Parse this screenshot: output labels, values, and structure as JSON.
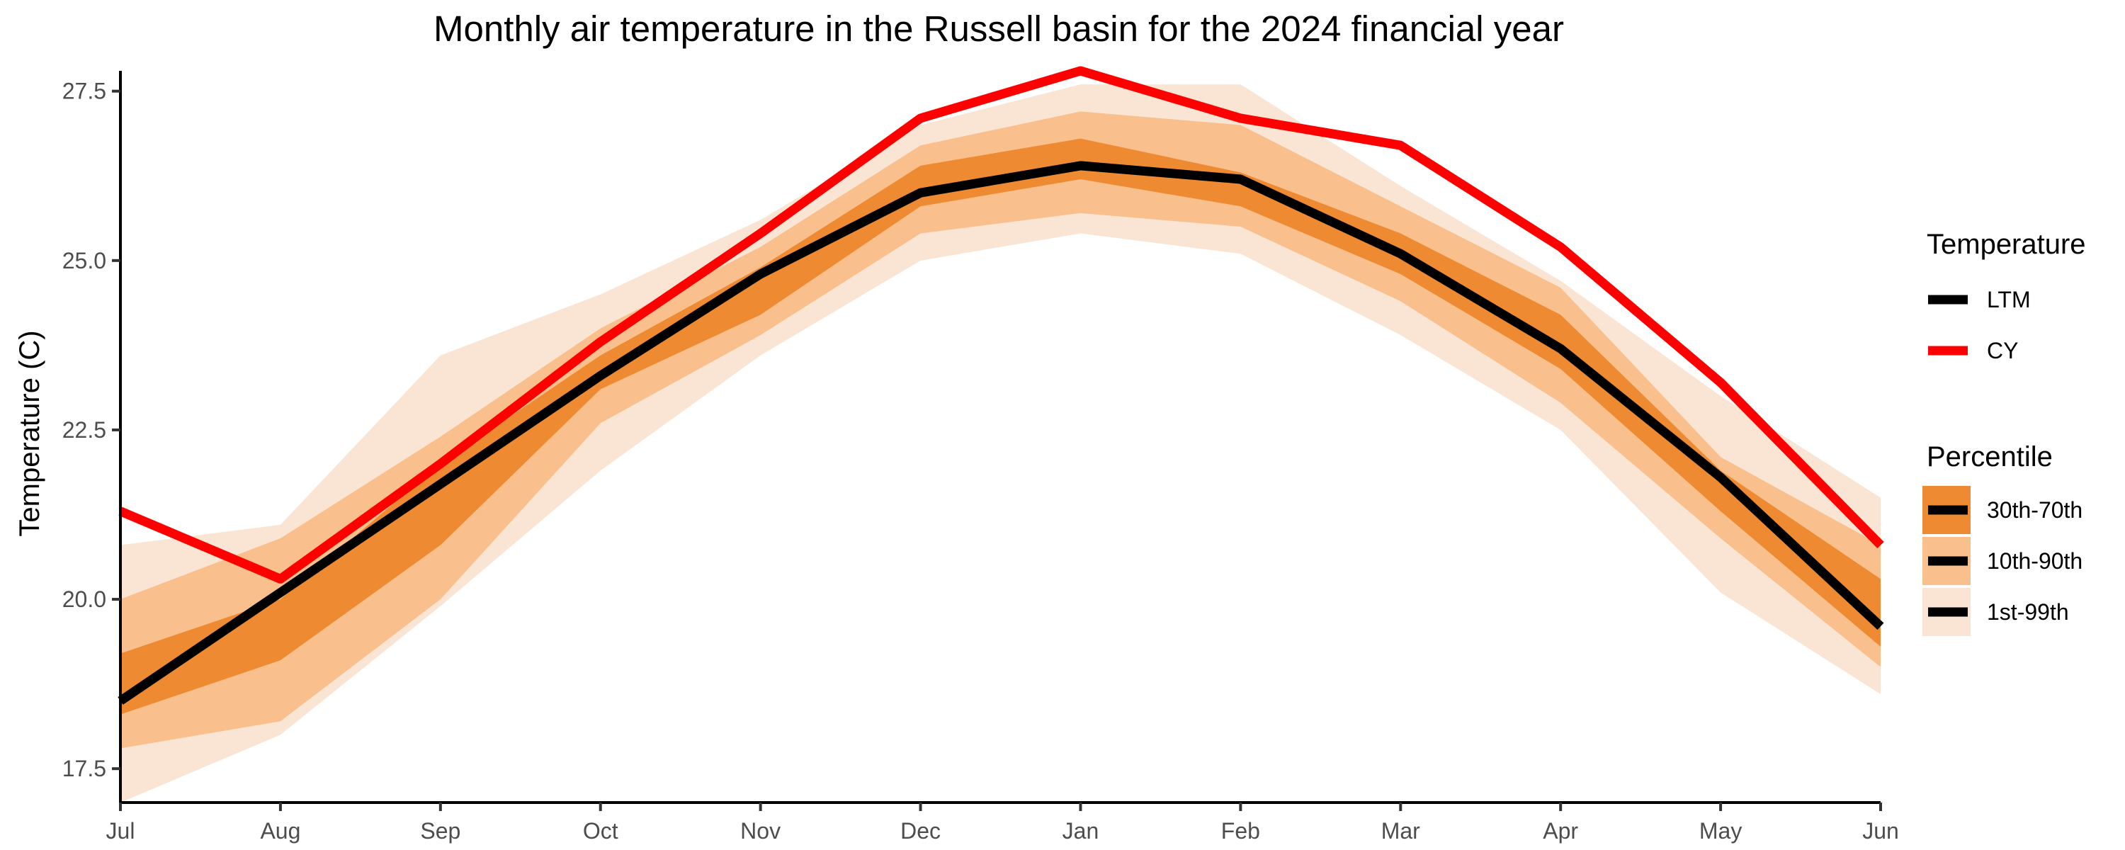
{
  "chart_data": {
    "type": "area",
    "title": "Monthly air temperature in the Russell basin for the 2024 financial year",
    "xlabel": "",
    "ylabel": "Temperature (C)",
    "categories": [
      "Jul",
      "Aug",
      "Sep",
      "Oct",
      "Nov",
      "Dec",
      "Jan",
      "Feb",
      "Mar",
      "Apr",
      "May",
      "Jun"
    ],
    "ylim": [
      17.0,
      27.8
    ],
    "yticks": [
      17.5,
      20.0,
      22.5,
      25.0,
      27.5
    ],
    "ytick_labels": [
      "17.5",
      "20.0",
      "22.5",
      "25.0",
      "27.5"
    ],
    "grid": false,
    "legend_placement": "right",
    "bands": [
      {
        "name": "1st-99th",
        "color": "#fae5d4",
        "lower": [
          17.0,
          18.0,
          19.9,
          21.9,
          23.6,
          25.0,
          25.4,
          25.1,
          23.9,
          22.5,
          20.1,
          18.6
        ],
        "upper": [
          20.8,
          21.1,
          23.6,
          24.5,
          25.6,
          27.0,
          27.6,
          27.6,
          26.1,
          24.7,
          23.0,
          21.5
        ]
      },
      {
        "name": "10th-90th",
        "color": "#f9bf8d",
        "lower": [
          17.8,
          18.2,
          20.0,
          22.6,
          23.9,
          25.4,
          25.7,
          25.5,
          24.4,
          22.9,
          20.9,
          19.0
        ],
        "upper": [
          20.0,
          20.9,
          22.4,
          24.0,
          25.2,
          26.7,
          27.2,
          27.0,
          25.8,
          24.6,
          22.1,
          20.8
        ]
      },
      {
        "name": "30th-70th",
        "color": "#ee8a31",
        "lower": [
          18.3,
          19.1,
          20.8,
          23.1,
          24.2,
          25.8,
          26.2,
          25.8,
          24.8,
          23.4,
          21.3,
          19.3
        ],
        "upper": [
          19.2,
          20.0,
          22.0,
          23.6,
          24.9,
          26.4,
          26.8,
          26.3,
          25.4,
          24.2,
          21.9,
          20.3
        ]
      }
    ],
    "series": [
      {
        "name": "LTM",
        "color": "#000000",
        "values": [
          18.5,
          20.1,
          21.7,
          23.3,
          24.8,
          26.0,
          26.4,
          26.2,
          25.1,
          23.7,
          21.8,
          19.6
        ]
      },
      {
        "name": "CY",
        "color": "#ff0000",
        "values": [
          21.3,
          20.3,
          22.0,
          23.8,
          25.4,
          27.1,
          27.8,
          27.1,
          26.7,
          25.2,
          23.2,
          20.8
        ]
      }
    ],
    "legend": {
      "temperature_title": "Temperature",
      "temperature_items": [
        "LTM",
        "CY"
      ],
      "percentile_title": "Percentile",
      "percentile_items": [
        "30th-70th",
        "10th-90th",
        "1st-99th"
      ]
    }
  }
}
